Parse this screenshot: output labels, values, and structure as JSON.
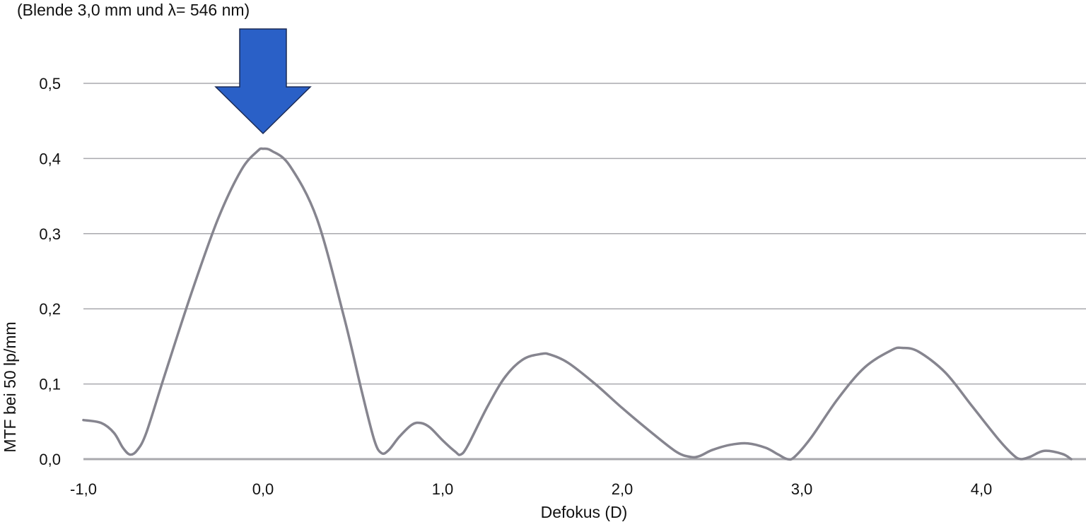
{
  "chart_data": {
    "type": "line",
    "title": "",
    "subtitle": "(Blende 3,0 mm und λ= 546 nm)",
    "xlabel": "Defokus (D)",
    "ylabel": "MTF bei 50 lp/mm",
    "xlim": [
      -1.0,
      4.5
    ],
    "ylim": [
      0.0,
      0.5
    ],
    "x_ticks": [
      {
        "value": -1.0,
        "label": "-1,0"
      },
      {
        "value": 0.0,
        "label": "0,0"
      },
      {
        "value": 1.0,
        "label": "1,0"
      },
      {
        "value": 2.0,
        "label": "2,0"
      },
      {
        "value": 3.0,
        "label": "3,0"
      },
      {
        "value": 4.0,
        "label": "4,0"
      }
    ],
    "y_ticks": [
      {
        "value": 0.0,
        "label": "0,0"
      },
      {
        "value": 0.1,
        "label": "0,1"
      },
      {
        "value": 0.2,
        "label": "0,2"
      },
      {
        "value": 0.3,
        "label": "0,3"
      },
      {
        "value": 0.4,
        "label": "0,4"
      },
      {
        "value": 0.5,
        "label": "0,5"
      }
    ],
    "grid": true,
    "line_color": "#86858f",
    "grid_color": "#a9a9ae",
    "annotation": {
      "type": "arrow",
      "x": 0.0,
      "color": "#2a60c7",
      "points_to": "peak"
    },
    "series": [
      {
        "name": "",
        "x": [
          -1.0,
          -0.9,
          -0.83,
          -0.78,
          -0.74,
          -0.7,
          -0.65,
          -0.55,
          -0.4,
          -0.25,
          -0.12,
          -0.03,
          0.0,
          0.05,
          0.15,
          0.3,
          0.45,
          0.55,
          0.62,
          0.66,
          0.7,
          0.76,
          0.83,
          0.88,
          0.93,
          1.0,
          1.07,
          1.1,
          1.14,
          1.25,
          1.35,
          1.45,
          1.55,
          1.6,
          1.7,
          1.85,
          2.0,
          2.15,
          2.3,
          2.38,
          2.43,
          2.5,
          2.6,
          2.7,
          2.8,
          2.87,
          2.92,
          2.96,
          3.05,
          3.2,
          3.35,
          3.5,
          3.56,
          3.65,
          3.8,
          3.95,
          4.1,
          4.18,
          4.22,
          4.27,
          4.35,
          4.45,
          4.5
        ],
        "y": [
          0.052,
          0.048,
          0.035,
          0.015,
          0.006,
          0.012,
          0.035,
          0.11,
          0.22,
          0.32,
          0.385,
          0.41,
          0.413,
          0.41,
          0.39,
          0.32,
          0.19,
          0.09,
          0.025,
          0.008,
          0.012,
          0.03,
          0.046,
          0.048,
          0.042,
          0.025,
          0.01,
          0.006,
          0.018,
          0.07,
          0.11,
          0.133,
          0.14,
          0.139,
          0.128,
          0.1,
          0.068,
          0.038,
          0.01,
          0.003,
          0.004,
          0.012,
          0.019,
          0.021,
          0.015,
          0.006,
          0.0,
          0.003,
          0.028,
          0.08,
          0.122,
          0.145,
          0.148,
          0.143,
          0.115,
          0.07,
          0.025,
          0.005,
          0.0,
          0.003,
          0.011,
          0.007,
          0.0
        ]
      }
    ]
  }
}
